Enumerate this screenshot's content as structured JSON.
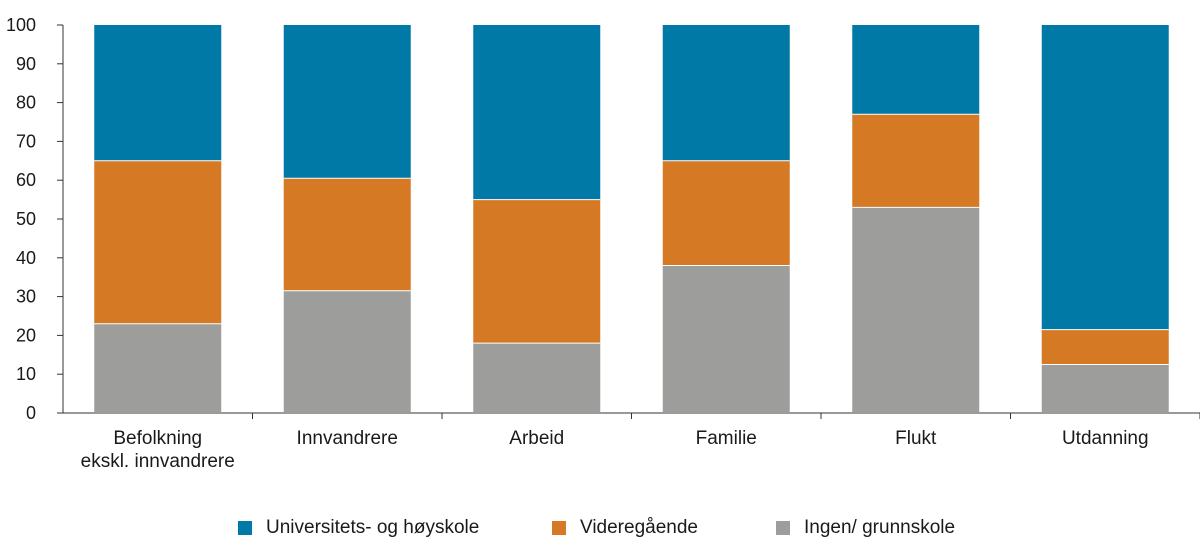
{
  "chart_data": {
    "type": "bar",
    "stacked": true,
    "categories": [
      [
        "Befolkning",
        "ekskl. innvandrere"
      ],
      [
        "Innvandrere"
      ],
      [
        "Arbeid"
      ],
      [
        "Familie"
      ],
      [
        "Flukt"
      ],
      [
        "Utdanning"
      ]
    ],
    "series": [
      {
        "name": "Ingen/ grunnskole",
        "color": "#9d9d9c",
        "values": [
          23,
          31.5,
          18,
          38,
          53,
          12.5
        ]
      },
      {
        "name": "Videregående",
        "color": "#d67924",
        "values": [
          42,
          29,
          37,
          27,
          24,
          9
        ]
      },
      {
        "name": "Universitets- og høyskole",
        "color": "#0079a6",
        "values": [
          35,
          39.5,
          45,
          35,
          23,
          78.5
        ]
      }
    ],
    "legend_order": [
      2,
      1,
      0
    ],
    "yticks": [
      "0",
      "10",
      "20",
      "30",
      "40",
      "50",
      "60",
      "70",
      "80",
      "90",
      "100"
    ],
    "ylim": [
      0,
      100
    ],
    "title": "",
    "xlabel": "",
    "ylabel": "",
    "grid": false,
    "legend_position": "bottom"
  }
}
